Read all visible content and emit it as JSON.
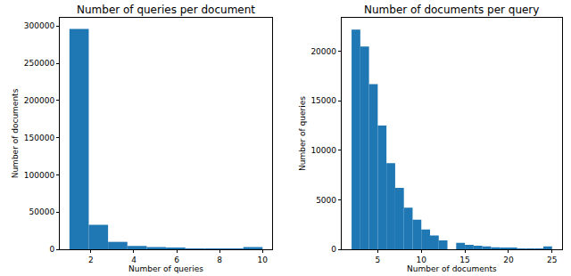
{
  "chart_data": [
    {
      "type": "histogram",
      "title": "Number of queries per document",
      "x_label": "Number of queries",
      "y_label": "Number of documents",
      "bins": [
        1,
        1.9,
        2.8,
        3.7,
        4.6,
        5.5,
        6.4,
        7.3,
        8.2,
        9.1,
        10
      ],
      "values": [
        296000,
        33000,
        10000,
        4500,
        3000,
        1500,
        1000,
        500,
        500,
        3000
      ],
      "color": "#1f77b4",
      "xlim": [
        0.55,
        10.45
      ],
      "xticks": [
        2,
        4,
        6,
        8,
        10
      ],
      "ylim": [
        0,
        311000
      ],
      "yticks": [
        0,
        50000,
        100000,
        150000,
        200000,
        250000,
        300000
      ],
      "grid": false
    },
    {
      "type": "histogram",
      "title": "Number of documents per query",
      "x_label": "Number of documents",
      "y_label": "Number of queries",
      "bins": [
        2,
        3,
        4,
        5,
        6,
        7,
        8,
        9,
        10,
        11,
        12,
        13,
        14,
        15,
        16,
        17,
        18,
        19,
        20,
        21,
        22,
        23,
        24,
        25
      ],
      "values": [
        22200,
        20500,
        16700,
        12500,
        8700,
        6200,
        4200,
        3000,
        2000,
        1400,
        900,
        0,
        650,
        450,
        350,
        300,
        200,
        150,
        100,
        80,
        60,
        40,
        300
      ],
      "color": "#1f77b4",
      "xlim": [
        0.85,
        26.15
      ],
      "xticks": [
        5,
        10,
        15,
        20,
        25
      ],
      "ylim": [
        0,
        23400
      ],
      "yticks": [
        0,
        5000,
        10000,
        15000,
        20000
      ],
      "grid": false
    }
  ]
}
